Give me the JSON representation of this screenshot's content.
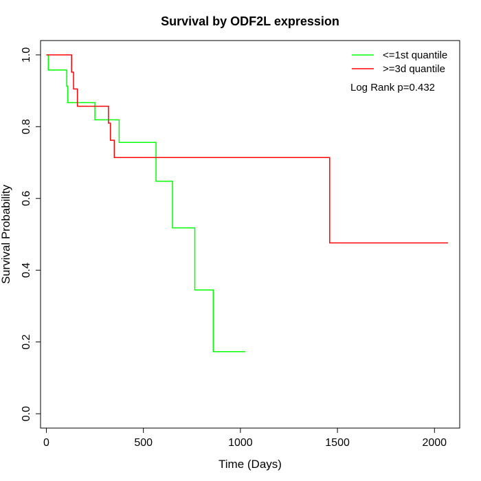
{
  "chart_data": {
    "type": "line",
    "title": "Survival by ODF2L expression",
    "xlabel": "Time (Days)",
    "ylabel": "Survival Probability",
    "xlim": [
      -30,
      2130
    ],
    "ylim": [
      -0.04,
      1.04
    ],
    "x_ticks": [
      0,
      500,
      1000,
      1500,
      2000
    ],
    "y_ticks": [
      0.0,
      0.2,
      0.4,
      0.6,
      0.8,
      1.0
    ],
    "x_tick_labels": [
      "0",
      "500",
      "1000",
      "1500",
      "2000"
    ],
    "y_tick_labels": [
      "0.0",
      "0.2",
      "0.4",
      "0.6",
      "0.8",
      "1.0"
    ],
    "grid": false,
    "legend_position": "top-right",
    "annotation": "Log Rank p=0.432",
    "series": [
      {
        "name": "<=1st quantile",
        "color": "#00ff00",
        "step": true,
        "x": [
          0,
          10,
          105,
          110,
          250,
          375,
          565,
          650,
          765,
          860,
          1025
        ],
        "y": [
          1.0,
          0.958,
          0.913,
          0.867,
          0.819,
          0.756,
          0.648,
          0.518,
          0.345,
          0.173,
          0.173
        ]
      },
      {
        "name": ">=3d quantile",
        "color": "#ff0000",
        "step": true,
        "x": [
          0,
          130,
          140,
          160,
          320,
          330,
          350,
          1460,
          2070
        ],
        "y": [
          1.0,
          0.952,
          0.905,
          0.857,
          0.81,
          0.762,
          0.714,
          0.476,
          0.476
        ]
      }
    ]
  }
}
